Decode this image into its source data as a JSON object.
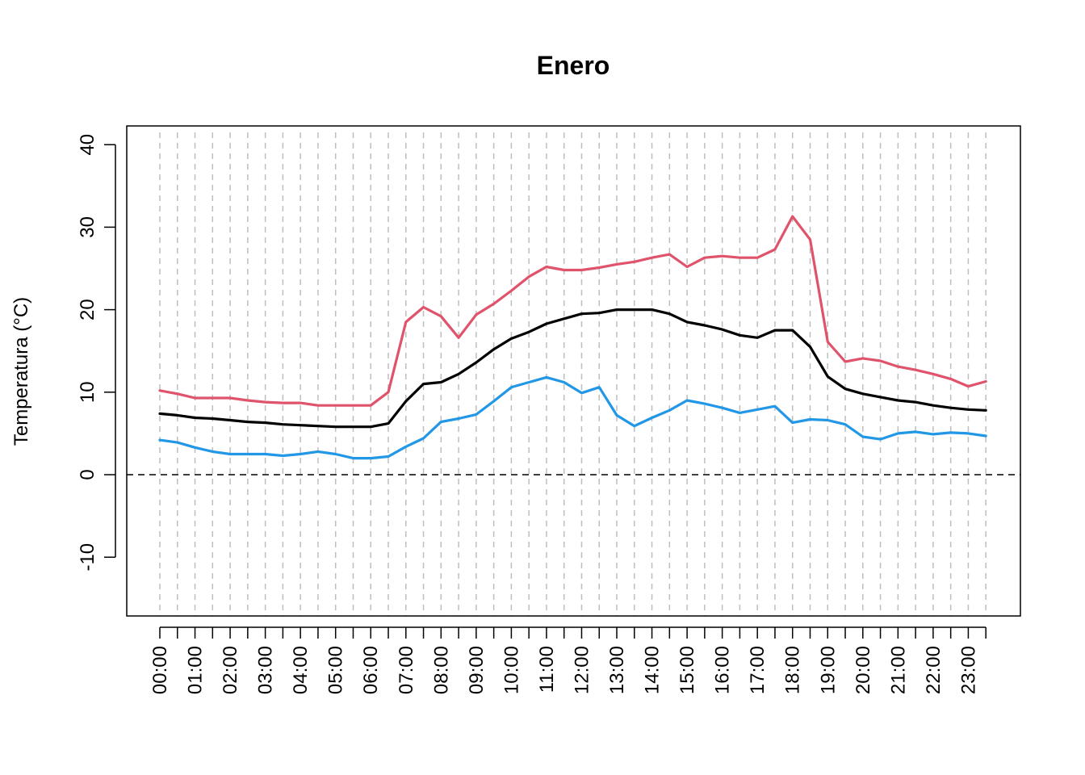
{
  "chart_data": {
    "type": "line",
    "title": "Enero",
    "xlabel": "",
    "ylabel": "Temperatura (°C)",
    "ylim": [
      -17,
      42
    ],
    "y_ticks": [
      -10,
      0,
      10,
      20,
      30,
      40
    ],
    "x_tick_labels": [
      "00:00",
      "01:00",
      "02:00",
      "03:00",
      "04:00",
      "05:00",
      "06:00",
      "07:00",
      "08:00",
      "09:00",
      "10:00",
      "11:00",
      "12:00",
      "13:00",
      "14:00",
      "15:00",
      "16:00",
      "17:00",
      "18:00",
      "19:00",
      "20:00",
      "21:00",
      "22:00",
      "23:00"
    ],
    "x": [
      "00:00",
      "00:30",
      "01:00",
      "01:30",
      "02:00",
      "02:30",
      "03:00",
      "03:30",
      "04:00",
      "04:30",
      "05:00",
      "05:30",
      "06:00",
      "06:30",
      "07:00",
      "07:30",
      "08:00",
      "08:30",
      "09:00",
      "09:30",
      "10:00",
      "10:30",
      "11:00",
      "11:30",
      "12:00",
      "12:30",
      "13:00",
      "13:30",
      "14:00",
      "14:30",
      "15:00",
      "15:30",
      "16:00",
      "16:30",
      "17:00",
      "17:30",
      "18:00",
      "18:30",
      "19:00",
      "19:30",
      "20:00",
      "20:30",
      "21:00",
      "21:30",
      "22:00",
      "22:30",
      "23:00",
      "23:30"
    ],
    "grid": "vertical dashed",
    "reference_line": 0,
    "series": [
      {
        "color": "#DF536B",
        "values": [
          10.2,
          9.8,
          9.3,
          9.3,
          9.3,
          9.0,
          8.8,
          8.7,
          8.7,
          8.4,
          8.4,
          8.4,
          8.4,
          10.0,
          18.5,
          20.3,
          19.2,
          16.6,
          19.4,
          20.7,
          22.3,
          24.0,
          25.2,
          24.8,
          24.8,
          25.1,
          25.5,
          25.8,
          26.3,
          26.7,
          25.2,
          26.3,
          26.5,
          26.3,
          26.3,
          27.3,
          31.3,
          28.5,
          16.1,
          13.7,
          14.1,
          13.8,
          13.1,
          12.7,
          12.2,
          11.6,
          10.7,
          11.3
        ]
      },
      {
        "color": "#000000",
        "values": [
          7.4,
          7.2,
          6.9,
          6.8,
          6.6,
          6.4,
          6.3,
          6.1,
          6.0,
          5.9,
          5.8,
          5.8,
          5.8,
          6.2,
          8.9,
          11.0,
          11.2,
          12.2,
          13.6,
          15.2,
          16.5,
          17.3,
          18.3,
          18.9,
          19.5,
          19.6,
          20.0,
          20.0,
          20.0,
          19.5,
          18.5,
          18.1,
          17.6,
          16.9,
          16.6,
          17.5,
          17.5,
          15.5,
          11.9,
          10.4,
          9.8,
          9.4,
          9.0,
          8.8,
          8.4,
          8.1,
          7.9,
          7.8
        ]
      },
      {
        "color": "#2297E6",
        "values": [
          4.2,
          3.9,
          3.3,
          2.8,
          2.5,
          2.5,
          2.5,
          2.3,
          2.5,
          2.8,
          2.5,
          2.0,
          2.0,
          2.2,
          3.4,
          4.4,
          6.4,
          6.8,
          7.3,
          8.9,
          10.6,
          11.2,
          11.8,
          11.2,
          9.9,
          10.6,
          7.2,
          5.9,
          6.9,
          7.8,
          9.0,
          8.6,
          8.1,
          7.5,
          7.9,
          8.3,
          6.3,
          6.7,
          6.6,
          6.1,
          4.6,
          4.3,
          5.0,
          5.2,
          4.9,
          5.1,
          5.0,
          4.7
        ]
      }
    ]
  }
}
